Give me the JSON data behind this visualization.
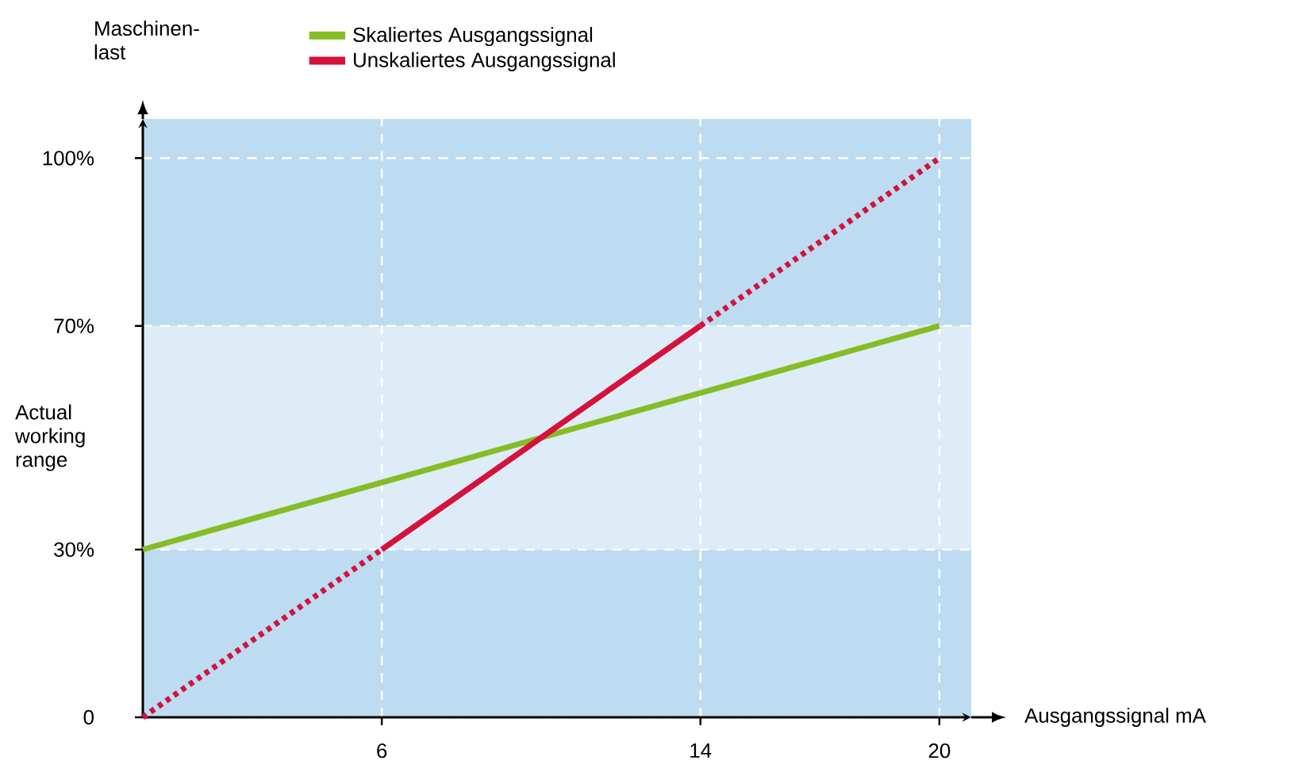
{
  "chart_data": {
    "type": "line",
    "xlabel": "Ausgangssignal mA",
    "ylabel": "Maschinen-last",
    "xlim": [
      0,
      20.8
    ],
    "xticks": [
      6,
      14,
      20
    ],
    "ylim": [
      0,
      107
    ],
    "yticks": [
      {
        "value": 0,
        "label": "0"
      },
      {
        "value": 30,
        "label": "30%"
      },
      {
        "value": 70,
        "label": "70%"
      },
      {
        "value": 100,
        "label": "100%"
      }
    ],
    "grid": true,
    "legend": "top",
    "marker": "none",
    "bands": [
      {
        "axis": "y",
        "from": 0,
        "to": 30,
        "color": "#bddcf1"
      },
      {
        "axis": "y",
        "from": 30,
        "to": 70,
        "label": "Actual working range",
        "color": "#deecf7"
      },
      {
        "axis": "y",
        "from": 70,
        "to": 107,
        "color": "#bddcf1"
      }
    ],
    "series": [
      {
        "name": "Skaliertes Ausgangssignal",
        "color": "#86bc25",
        "x": [
          0,
          20
        ],
        "values": [
          30,
          70
        ],
        "line_style": "solid"
      },
      {
        "name": "Unskaliertes Ausgangssignal",
        "color": "#d5113c",
        "x": [
          6,
          14
        ],
        "values": [
          30,
          70
        ],
        "line_style": "solid"
      },
      {
        "color": "#d5113c",
        "x": [
          0,
          6
        ],
        "values": [
          0,
          30
        ],
        "line_style": "dotted"
      },
      {
        "color": "#d5113c",
        "x": [
          14,
          20
        ],
        "values": [
          70,
          100
        ],
        "line_style": "dotted"
      }
    ]
  }
}
